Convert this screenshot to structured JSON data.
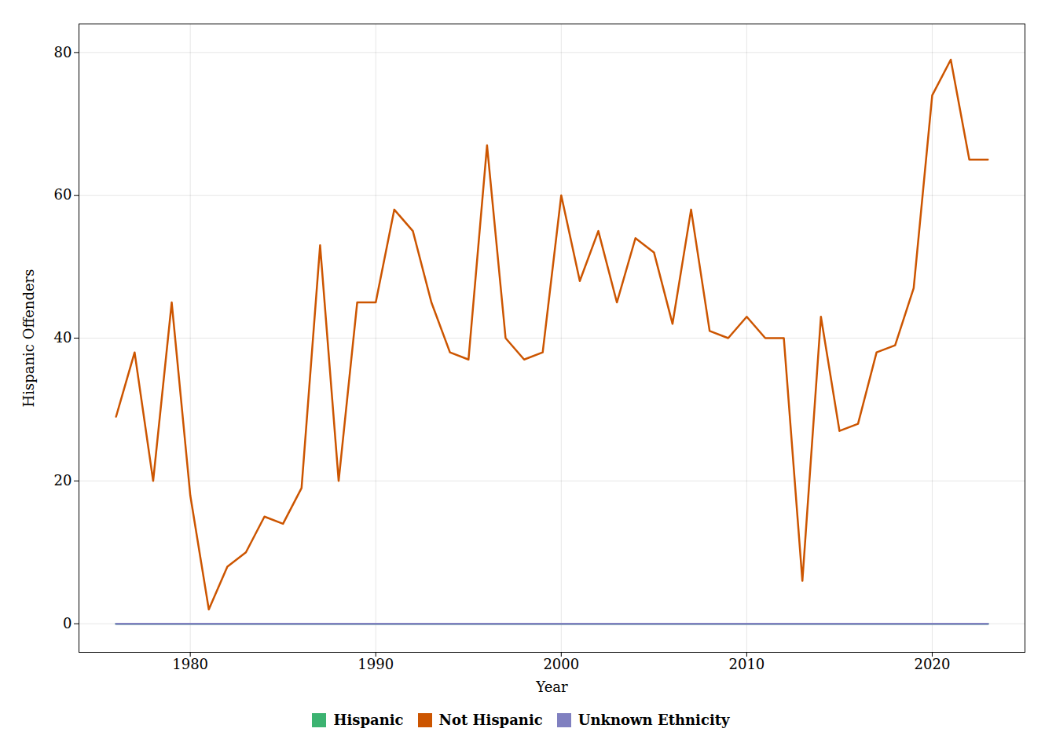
{
  "chart_data": {
    "type": "line",
    "xlabel": "Year",
    "ylabel": "Hispanic Offenders",
    "x": [
      1976,
      1977,
      1978,
      1979,
      1980,
      1981,
      1982,
      1983,
      1984,
      1985,
      1986,
      1987,
      1988,
      1989,
      1990,
      1991,
      1992,
      1993,
      1994,
      1995,
      1996,
      1997,
      1998,
      1999,
      2000,
      2001,
      2002,
      2003,
      2004,
      2005,
      2006,
      2007,
      2008,
      2009,
      2010,
      2011,
      2012,
      2013,
      2014,
      2015,
      2016,
      2017,
      2018,
      2019,
      2020,
      2021,
      2022,
      2023
    ],
    "series": [
      {
        "name": "Hispanic",
        "color": "#3CB371",
        "values": [
          0,
          0,
          0,
          0,
          0,
          0,
          0,
          0,
          0,
          0,
          0,
          0,
          0,
          0,
          0,
          0,
          0,
          0,
          0,
          0,
          0,
          0,
          0,
          0,
          0,
          0,
          0,
          0,
          0,
          0,
          0,
          0,
          0,
          0,
          0,
          0,
          0,
          0,
          0,
          0,
          0,
          0,
          0,
          0,
          0,
          0,
          0,
          0
        ]
      },
      {
        "name": "Not Hispanic",
        "color": "#CC5500",
        "values": [
          29,
          38,
          20,
          45,
          18,
          2,
          8,
          10,
          15,
          14,
          19,
          53,
          20,
          45,
          45,
          58,
          55,
          45,
          38,
          37,
          67,
          40,
          37,
          38,
          60,
          48,
          55,
          45,
          54,
          52,
          42,
          58,
          41,
          40,
          43,
          40,
          40,
          6,
          43,
          27,
          28,
          38,
          39,
          47,
          74,
          79,
          65,
          65
        ]
      },
      {
        "name": "Unknown Ethnicity",
        "color": "#8080C0",
        "values": [
          0,
          0,
          0,
          0,
          0,
          0,
          0,
          0,
          0,
          0,
          0,
          0,
          0,
          0,
          0,
          0,
          0,
          0,
          0,
          0,
          0,
          0,
          0,
          0,
          0,
          0,
          0,
          0,
          0,
          0,
          0,
          0,
          0,
          0,
          0,
          0,
          0,
          0,
          0,
          0,
          0,
          0,
          0,
          0,
          0,
          0,
          0,
          0
        ]
      }
    ],
    "xlim": [
      1974,
      2025
    ],
    "ylim": [
      -4,
      84
    ],
    "xticks": [
      1980,
      1990,
      2000,
      2010,
      2020
    ],
    "yticks": [
      0,
      20,
      40,
      60,
      80
    ],
    "grid": true,
    "legend": "bottom"
  }
}
